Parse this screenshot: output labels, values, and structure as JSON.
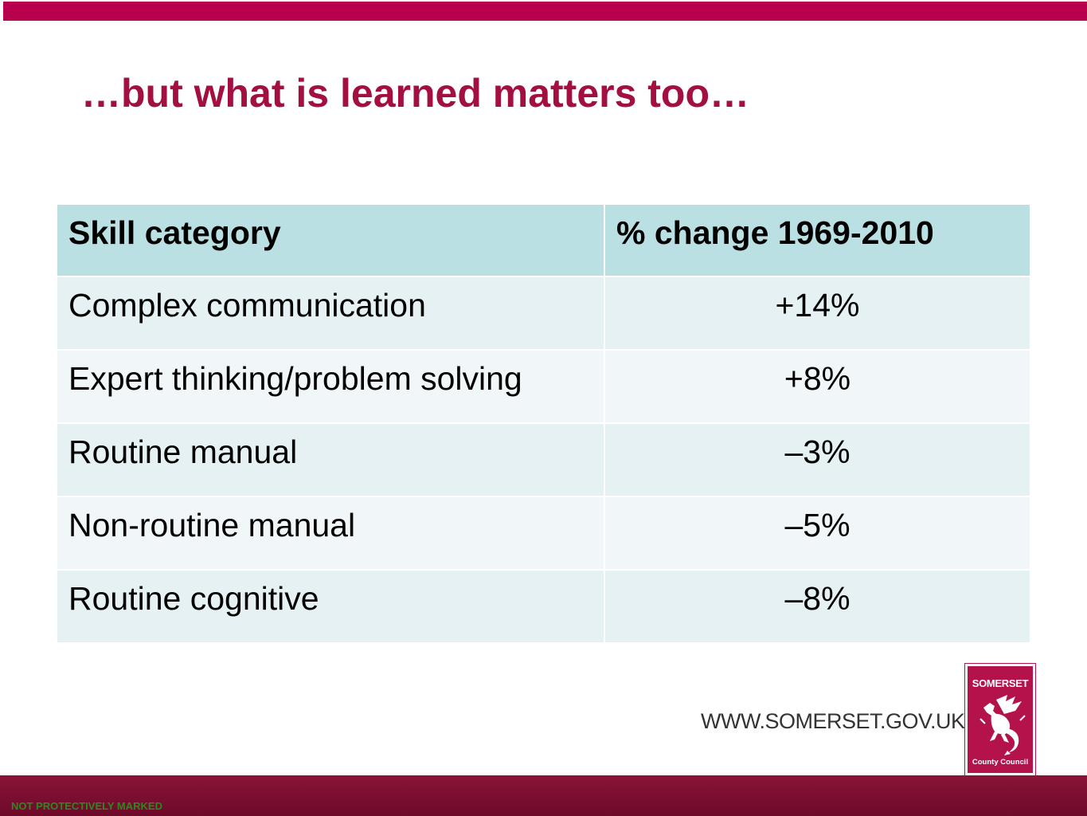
{
  "slide": {
    "title": "…but what is learned matters too…"
  },
  "table": {
    "headers": [
      "Skill category",
      "% change 1969-2010"
    ],
    "rows": [
      [
        "Complex communication",
        "+14%"
      ],
      [
        "Expert thinking/problem solving",
        "+8%"
      ],
      [
        "Routine manual",
        "–3%"
      ],
      [
        "Non-routine manual",
        "–5%"
      ],
      [
        "Routine cognitive",
        "–8%"
      ]
    ]
  },
  "footer": {
    "website": "WWW.SOMERSET.GOV.UK",
    "logo_top": "SOMERSET",
    "logo_bottom": "County Council",
    "marking": "NOT PROTECTIVELY MARKED"
  },
  "colors": {
    "brand": "#b8004f",
    "title": "#a3103f",
    "header_fill": "#bbe0e3",
    "row_fill_a": "#e5f1f3",
    "row_fill_b": "#f1f7f9",
    "marking": "#2a8a1e"
  },
  "icons": {
    "logo": "wyvern-dragon-icon"
  }
}
